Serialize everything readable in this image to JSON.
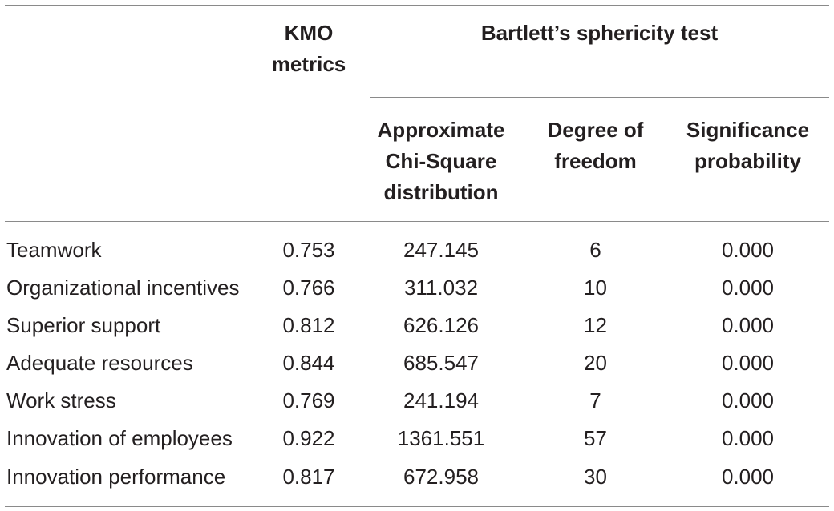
{
  "headers": {
    "kmo": "KMO\nmetrics",
    "bartlett": "Bartlett’s sphericity test",
    "chi": "Approximate\nChi-Square\ndistribution",
    "df": "Degree of\nfreedom",
    "sig": "Significance\nprobability"
  },
  "rows": [
    {
      "name": "Teamwork",
      "kmo": "0.753",
      "chi": "247.145",
      "df": "6",
      "sig": "0.000"
    },
    {
      "name": "Organizational incentives",
      "kmo": "0.766",
      "chi": "311.032",
      "df": "10",
      "sig": "0.000"
    },
    {
      "name": "Superior support",
      "kmo": "0.812",
      "chi": "626.126",
      "df": "12",
      "sig": "0.000"
    },
    {
      "name": "Adequate resources",
      "kmo": "0.844",
      "chi": "685.547",
      "df": "20",
      "sig": "0.000"
    },
    {
      "name": "Work stress",
      "kmo": "0.769",
      "chi": "241.194",
      "df": "7",
      "sig": "0.000"
    },
    {
      "name": "Innovation of employees",
      "kmo": "0.922",
      "chi": "1361.551",
      "df": "57",
      "sig": "0.000"
    },
    {
      "name": "Innovation performance",
      "kmo": "0.817",
      "chi": "672.958",
      "df": "30",
      "sig": "0.000"
    }
  ]
}
